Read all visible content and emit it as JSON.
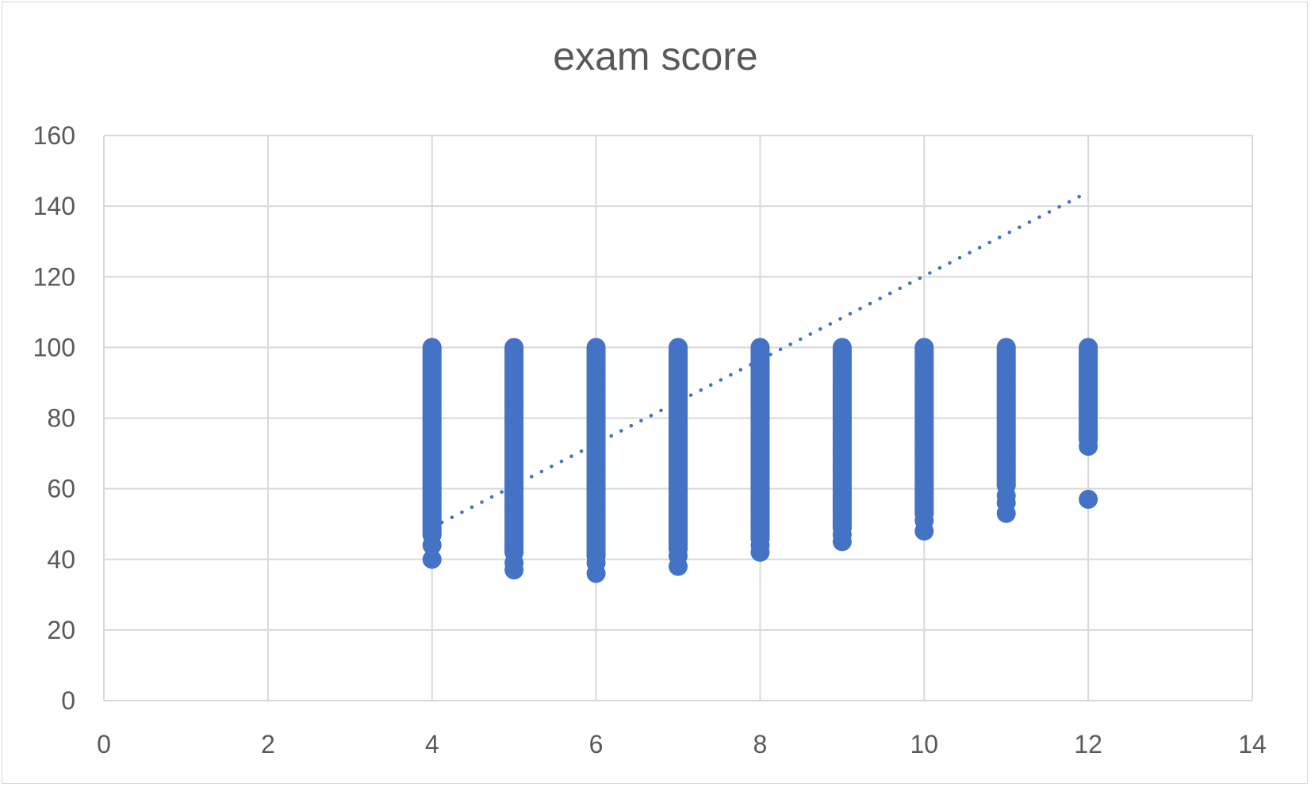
{
  "chart_data": {
    "type": "scatter",
    "title": "exam score",
    "xlabel": "",
    "ylabel": "",
    "xlim": [
      0,
      14
    ],
    "ylim": [
      0,
      160
    ],
    "x_ticks": [
      0,
      2,
      4,
      6,
      8,
      10,
      12,
      14
    ],
    "y_ticks": [
      0,
      20,
      40,
      60,
      80,
      100,
      120,
      140,
      160
    ],
    "grid": true,
    "legend": "none",
    "colors": {
      "marker": "#4472C4",
      "trendline": "#4472C4",
      "grid": "#d9d9d9",
      "text": "#595959"
    },
    "columns": [
      {
        "x": 4,
        "y_min": 40,
        "y_max": 100,
        "lowest_points": [
          40,
          44,
          47
        ]
      },
      {
        "x": 5,
        "y_min": 37,
        "y_max": 100,
        "lowest_points": [
          37,
          39,
          42
        ]
      },
      {
        "x": 6,
        "y_min": 36,
        "y_max": 100,
        "lowest_points": [
          36,
          39,
          41
        ]
      },
      {
        "x": 7,
        "y_min": 38,
        "y_max": 100,
        "lowest_points": [
          38,
          41,
          43
        ]
      },
      {
        "x": 8,
        "y_min": 42,
        "y_max": 100,
        "lowest_points": [
          42,
          44,
          46
        ]
      },
      {
        "x": 9,
        "y_min": 45,
        "y_max": 100,
        "lowest_points": [
          45,
          47,
          49
        ]
      },
      {
        "x": 10,
        "y_min": 48,
        "y_max": 100,
        "lowest_points": [
          48,
          51,
          53
        ]
      },
      {
        "x": 11,
        "y_min": 53,
        "y_max": 100,
        "lowest_points": [
          53,
          56,
          58,
          61
        ]
      },
      {
        "x": 12,
        "y_min": 57,
        "y_max": 100,
        "lowest_points": [
          57,
          72,
          74
        ]
      }
    ],
    "trendline": {
      "style": "dotted",
      "type": "linear",
      "from": {
        "x": 4,
        "y": 49
      },
      "to": {
        "x": 12,
        "y": 144
      }
    }
  }
}
